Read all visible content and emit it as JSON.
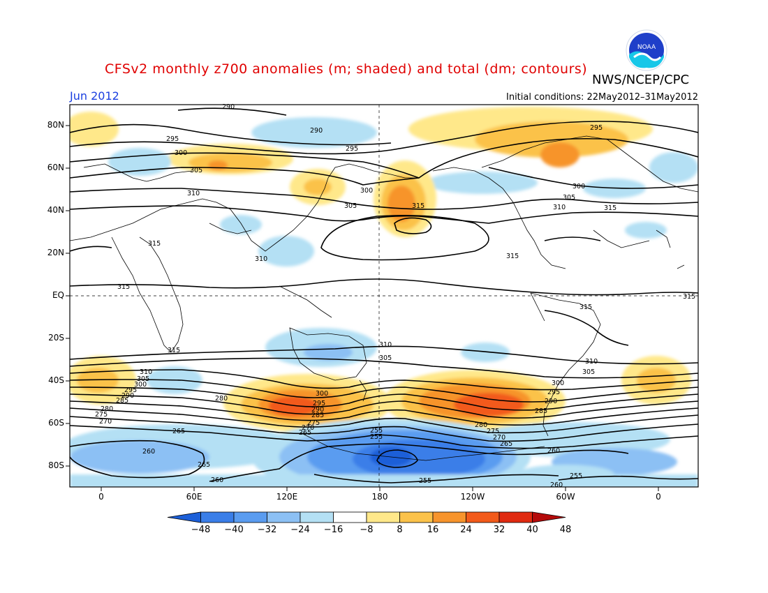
{
  "title": "CFSv2 monthly z700 anomalies (m; shaded) and total (dm; contours)",
  "organization": "NWS/NCEP/CPC",
  "logo_text": "NOAA",
  "period": "Jun 2012",
  "initial_conditions": "Initial conditions: 22May2012–31May2012",
  "lat_ticks": [
    "80N",
    "60N",
    "40N",
    "20N",
    "EQ",
    "20S",
    "40S",
    "60S",
    "80S"
  ],
  "lon_ticks": [
    "0",
    "60E",
    "120E",
    "180",
    "120W",
    "60W",
    "0"
  ],
  "colorbar": {
    "labels": [
      "−48",
      "−40",
      "−32",
      "−24",
      "−16",
      "−8",
      "8",
      "16",
      "24",
      "32",
      "40",
      "48"
    ],
    "colors": [
      "#1c5fd8",
      "#3a7ee8",
      "#5a9cf0",
      "#8cc0f4",
      "#b4e0f4",
      "#ffffff",
      "#ffe88a",
      "#fbc24a",
      "#f7942c",
      "#f25a1a",
      "#e02a10",
      "#b40a0a"
    ]
  },
  "contour_labels": {
    "north": [
      "290",
      "290",
      "295",
      "295",
      "295",
      "300",
      "300",
      "300",
      "305",
      "305",
      "305",
      "310",
      "310",
      "310",
      "315",
      "315",
      "315",
      "315"
    ],
    "tropics": [
      "315",
      "315",
      "315",
      "315"
    ],
    "south": [
      "310",
      "310",
      "310",
      "305",
      "305",
      "305",
      "300",
      "300",
      "300",
      "295",
      "295",
      "295",
      "290",
      "290",
      "290",
      "285",
      "285",
      "285",
      "280",
      "280",
      "280",
      "275",
      "275",
      "275",
      "270",
      "270",
      "270",
      "265",
      "265",
      "265",
      "265",
      "260",
      "260",
      "260",
      "255",
      "255",
      "255",
      "255",
      "260"
    ]
  }
}
